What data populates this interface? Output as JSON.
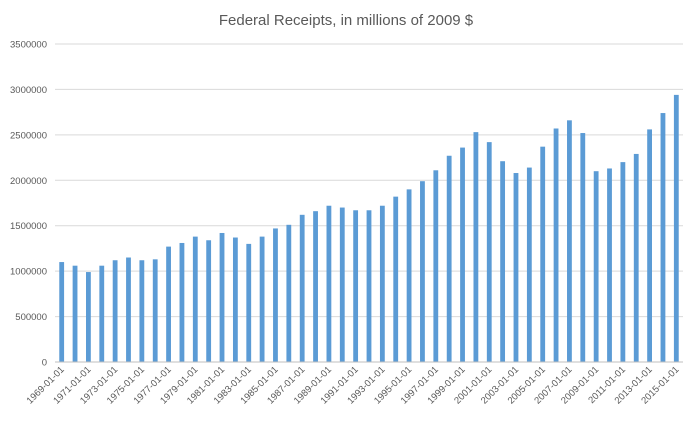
{
  "chart_data": {
    "type": "bar",
    "title": "Federal Receipts, in millions of 2009 $",
    "xlabel": "",
    "ylabel": "",
    "ylim": [
      0,
      3500000
    ],
    "yticks": [
      "0",
      "500000",
      "1000000",
      "1500000",
      "2000000",
      "2500000",
      "3000000",
      "3500000"
    ],
    "grid": true,
    "legend": "none",
    "bar_color": "#5B9BD5",
    "grid_color": "#D9D9D9",
    "categories": [
      "1969-01-01",
      "1970-01-01",
      "1971-01-01",
      "1972-01-01",
      "1973-01-01",
      "1974-01-01",
      "1975-01-01",
      "1976-01-01",
      "1977-01-01",
      "1978-01-01",
      "1979-01-01",
      "1980-01-01",
      "1981-01-01",
      "1982-01-01",
      "1983-01-01",
      "1984-01-01",
      "1985-01-01",
      "1986-01-01",
      "1987-01-01",
      "1988-01-01",
      "1989-01-01",
      "1990-01-01",
      "1991-01-01",
      "1992-01-01",
      "1993-01-01",
      "1994-01-01",
      "1995-01-01",
      "1996-01-01",
      "1997-01-01",
      "1998-01-01",
      "1999-01-01",
      "2000-01-01",
      "2001-01-01",
      "2002-01-01",
      "2003-01-01",
      "2004-01-01",
      "2005-01-01",
      "2006-01-01",
      "2007-01-01",
      "2008-01-01",
      "2009-01-01",
      "2010-01-01",
      "2011-01-01",
      "2012-01-01",
      "2013-01-01",
      "2014-01-01",
      "2015-01-01"
    ],
    "tick_labels_shown": [
      "1969-01-01",
      "1971-01-01",
      "1973-01-01",
      "1975-01-01",
      "1977-01-01",
      "1979-01-01",
      "1981-01-01",
      "1983-01-01",
      "1985-01-01",
      "1987-01-01",
      "1989-01-01",
      "1991-01-01",
      "1993-01-01",
      "1995-01-01",
      "1997-01-01",
      "1999-01-01",
      "2001-01-01",
      "2003-01-01",
      "2005-01-01",
      "2007-01-01",
      "2009-01-01",
      "2011-01-01",
      "2013-01-01",
      "2015-01-01"
    ],
    "values": [
      1100000,
      1060000,
      990000,
      1060000,
      1120000,
      1150000,
      1120000,
      1130000,
      1270000,
      1310000,
      1380000,
      1340000,
      1420000,
      1370000,
      1300000,
      1380000,
      1470000,
      1510000,
      1620000,
      1660000,
      1720000,
      1700000,
      1670000,
      1670000,
      1720000,
      1820000,
      1900000,
      1990000,
      2110000,
      2270000,
      2360000,
      2530000,
      2420000,
      2210000,
      2080000,
      2140000,
      2370000,
      2570000,
      2660000,
      2520000,
      2100000,
      2130000,
      2200000,
      2290000,
      2560000,
      2740000,
      2940000
    ]
  }
}
